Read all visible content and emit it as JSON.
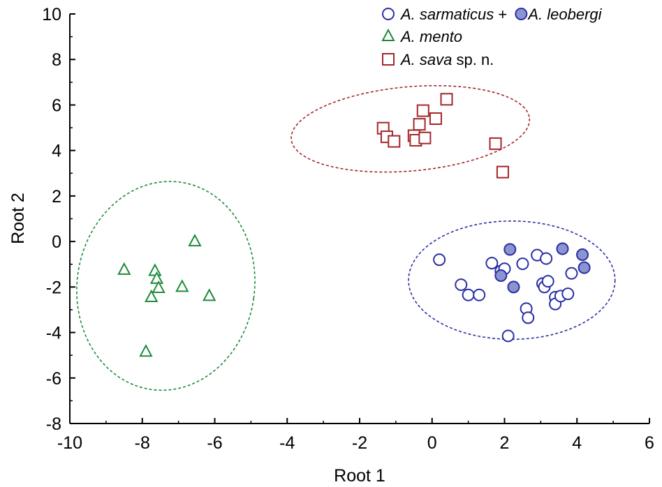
{
  "chart_data": {
    "type": "scatter",
    "xlabel": "Root 1",
    "ylabel": "Root 2",
    "xlim": [
      -10,
      6
    ],
    "ylim": [
      -8,
      10
    ],
    "xticks": [
      -10,
      -8,
      -6,
      -4,
      -2,
      0,
      2,
      4,
      6
    ],
    "yticks": [
      -8,
      -6,
      -4,
      -2,
      0,
      2,
      4,
      6,
      8,
      10
    ],
    "grid": false,
    "legend_position": "top-right",
    "legend": [
      {
        "parts": [
          {
            "text": "A. sarmaticus",
            "italic": true
          },
          {
            "text": " + ",
            "italic": false
          },
          {
            "text": "A. leobergi",
            "italic": true
          }
        ]
      },
      {
        "parts": [
          {
            "text": "A. mento",
            "italic": true
          }
        ]
      },
      {
        "parts": [
          {
            "text": "A. sava",
            "italic": true
          },
          {
            "text": " sp. n.",
            "italic": false
          }
        ]
      }
    ],
    "series": [
      {
        "name": "A. sarmaticus",
        "marker": "circle-open",
        "color": "#2a2fa3",
        "points": [
          [
            0.2,
            -0.8
          ],
          [
            0.8,
            -1.9
          ],
          [
            1.0,
            -2.35
          ],
          [
            1.3,
            -2.35
          ],
          [
            1.65,
            -0.95
          ],
          [
            1.9,
            -1.3
          ],
          [
            2.0,
            -1.2
          ],
          [
            2.5,
            -0.98
          ],
          [
            2.6,
            -2.95
          ],
          [
            2.65,
            -3.35
          ],
          [
            2.9,
            -0.6
          ],
          [
            3.05,
            -1.85
          ],
          [
            3.1,
            -2.0
          ],
          [
            3.15,
            -0.75
          ],
          [
            3.2,
            -1.75
          ],
          [
            3.4,
            -2.45
          ],
          [
            3.4,
            -2.75
          ],
          [
            3.55,
            -2.4
          ],
          [
            3.75,
            -2.3
          ],
          [
            3.85,
            -1.4
          ],
          [
            2.1,
            -4.15
          ]
        ]
      },
      {
        "name": "A. leobergi",
        "marker": "circle-filled",
        "color": "#2a2fa3",
        "fill": "#8b93d1",
        "points": [
          [
            2.15,
            -0.35
          ],
          [
            1.9,
            -1.5
          ],
          [
            2.25,
            -2.0
          ],
          [
            3.6,
            -0.32
          ],
          [
            4.15,
            -0.58
          ],
          [
            4.2,
            -1.15
          ]
        ]
      },
      {
        "name": "A. mento",
        "marker": "triangle-open",
        "color": "#1f8a3c",
        "points": [
          [
            -8.5,
            -1.25
          ],
          [
            -7.65,
            -1.3
          ],
          [
            -7.6,
            -1.65
          ],
          [
            -7.55,
            -2.05
          ],
          [
            -7.75,
            -2.45
          ],
          [
            -6.55,
            0.0
          ],
          [
            -6.9,
            -2.0
          ],
          [
            -6.15,
            -2.4
          ],
          [
            -7.9,
            -4.85
          ]
        ]
      },
      {
        "name": "A. sava",
        "marker": "square-open",
        "color": "#a3262b",
        "points": [
          [
            -1.35,
            4.98
          ],
          [
            -1.25,
            4.6
          ],
          [
            -1.05,
            4.4
          ],
          [
            -0.35,
            5.15
          ],
          [
            -0.25,
            5.75
          ],
          [
            -0.5,
            4.65
          ],
          [
            -0.45,
            4.45
          ],
          [
            -0.2,
            4.55
          ],
          [
            0.1,
            5.4
          ],
          [
            0.4,
            6.25
          ],
          [
            1.75,
            4.3
          ],
          [
            1.95,
            3.05
          ]
        ]
      }
    ],
    "ellipses": [
      {
        "group": "A. sarmaticus + A. leobergi",
        "color": "#2a2fa3",
        "center": [
          2.2,
          -1.7
        ],
        "rx": 2.85,
        "ry": 2.6,
        "angle_deg": 0
      },
      {
        "group": "A. mento",
        "color": "#1f8a3c",
        "center": [
          -7.35,
          -1.95
        ],
        "rx": 2.45,
        "ry": 4.6,
        "angle_deg": 8
      },
      {
        "group": "A. sava",
        "color": "#a3262b",
        "center": [
          -0.6,
          4.95
        ],
        "rx": 3.3,
        "ry": 1.85,
        "angle_deg": -5
      }
    ]
  }
}
